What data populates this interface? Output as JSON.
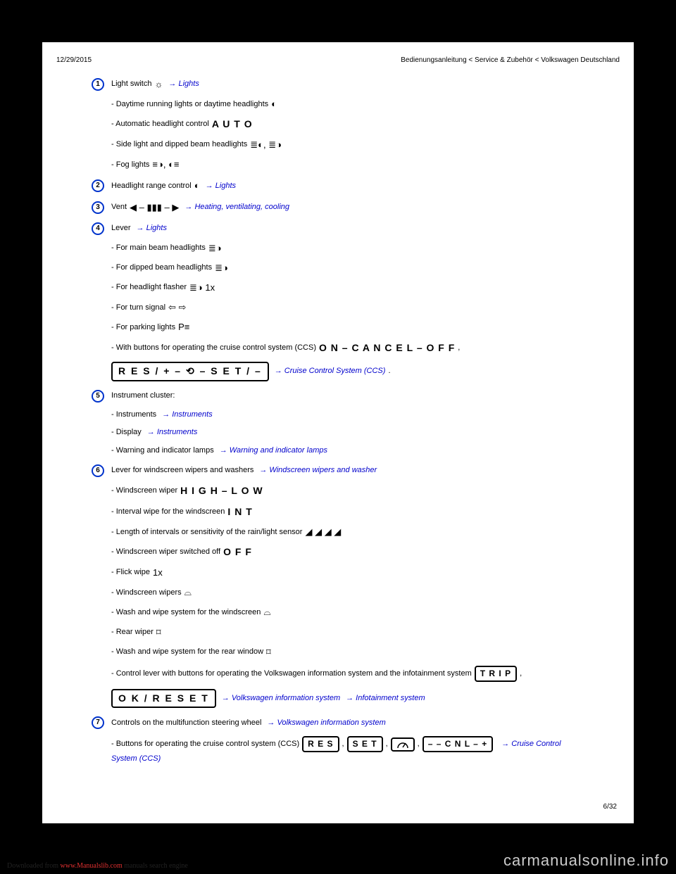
{
  "header": {
    "date": "12/29/2015",
    "title": "Bedienungsanleitung < Service & Zubehör < Volkswagen Deutschland"
  },
  "pagenum": "6/32",
  "footer": {
    "prefix": "Downloaded from ",
    "link": "www.Manualslib.com",
    "suffix": " manuals search engine"
  },
  "watermark": "carmanualsonline.info",
  "links": {
    "lights": "→ Lights",
    "hvac": "→ Heating, ventilating, cooling",
    "ccs": "→ Cruise Control System (CCS)",
    "instruments": "→ Instruments",
    "warning": "→ Warning and indicator lamps",
    "wipers": "→ Windscreen wipers and washer",
    "vwinfo": "→ Volkswagen information system",
    "infotainment": "→ Infotainment system"
  },
  "glyphs": {
    "auto": "A U T O",
    "high_low": "H I G H – L O W",
    "int": "I N T",
    "off": "O F F",
    "on_cancel_off": "O N – C A N C E L – O F F",
    "res_set": "R E S / + – ⟲ – S E T / –",
    "trip": "T R I P",
    "ok_reset": "O K / R E S E T",
    "res": "R E S",
    "set": "S E T",
    "cnl": "– – C N L – +"
  },
  "items": [
    {
      "num": "1",
      "label": "Light switch",
      "link": "lights",
      "icon_pre": "☼",
      "subs": [
        {
          "text": "- Daytime running lights or daytime headlights",
          "icon": "◐"
        },
        {
          "text": "- Automatic headlight control",
          "glyph": "auto"
        },
        {
          "text": "- Side light and dipped beam headlights",
          "icon": "≣◐, ≣◑"
        },
        {
          "text": "- Fog lights",
          "icon": "≡◑, ◐≡"
        }
      ]
    },
    {
      "num": "2",
      "label": "Headlight range control",
      "icon_pre": "◐",
      "link": "lights"
    },
    {
      "num": "3",
      "label": "Vent",
      "icon_pre": "◀ – ▮▮▮ – ▶",
      "link": "hvac"
    },
    {
      "num": "4",
      "label": "Lever",
      "link": "lights",
      "subs": [
        {
          "text": "- For main beam headlights",
          "icon": "≣◑"
        },
        {
          "text": "- For dipped beam headlights",
          "icon": "≣◑"
        },
        {
          "text": "- For headlight flasher",
          "icon": "≣◑ 1x"
        },
        {
          "text": "- For turn signal",
          "icon": "⇦ ⇨"
        },
        {
          "text": "- For parking lights",
          "icon": "P≡"
        },
        {
          "text": "- With buttons for operating the cruise control system (CCS)",
          "glyph": "on_cancel_off",
          "trail": ","
        },
        {
          "bigglyph": "res_set",
          "link": "ccs",
          "trail": " ."
        }
      ]
    },
    {
      "num": "5",
      "label": "Instrument cluster:",
      "subs": [
        {
          "text": "- Instruments",
          "link": "instruments"
        },
        {
          "text": "- Display",
          "link": "instruments"
        },
        {
          "text": "- Warning and indicator lamps",
          "link": "warning"
        }
      ]
    },
    {
      "num": "6",
      "label": "Lever for windscreen wipers and washers",
      "link": "wipers",
      "subs": [
        {
          "text": "- Windscreen wiper",
          "glyph": "high_low"
        },
        {
          "text": "- Interval wipe for the windscreen",
          "glyph": "int"
        },
        {
          "text": "- Length of intervals or sensitivity of the rain/light sensor",
          "icon": "◢ ◢ ◢ ◢"
        },
        {
          "text": "- Windscreen wiper switched off",
          "glyph": "off"
        },
        {
          "text": "- Flick wipe",
          "icon": "1x"
        },
        {
          "text": "- Windscreen wipers",
          "icon": "⌓"
        },
        {
          "text": "- Wash and wipe system for the windscreen",
          "icon": "⌓"
        },
        {
          "text": "- Rear wiper",
          "icon": "⌑"
        },
        {
          "text": "- Wash and wipe system for the rear window",
          "icon": "⌑"
        },
        {
          "text": "- Control lever with buttons for operating the Volkswagen information system and the infotainment system",
          "btnglyph": "trip",
          "trail": " ,"
        },
        {
          "bigglyph": "ok_reset",
          "link": "vwinfo",
          "link2": "infotainment"
        }
      ]
    },
    {
      "num": "7",
      "label": "Controls on the multifunction steering wheel",
      "link": "vwinfo",
      "subs": [
        {
          "text": "- Buttons for operating the cruise control system (CCS)",
          "btns": [
            "res",
            "set",
            "__speed",
            "cnl"
          ],
          "link": "ccs",
          "wraplink": true
        }
      ]
    }
  ]
}
